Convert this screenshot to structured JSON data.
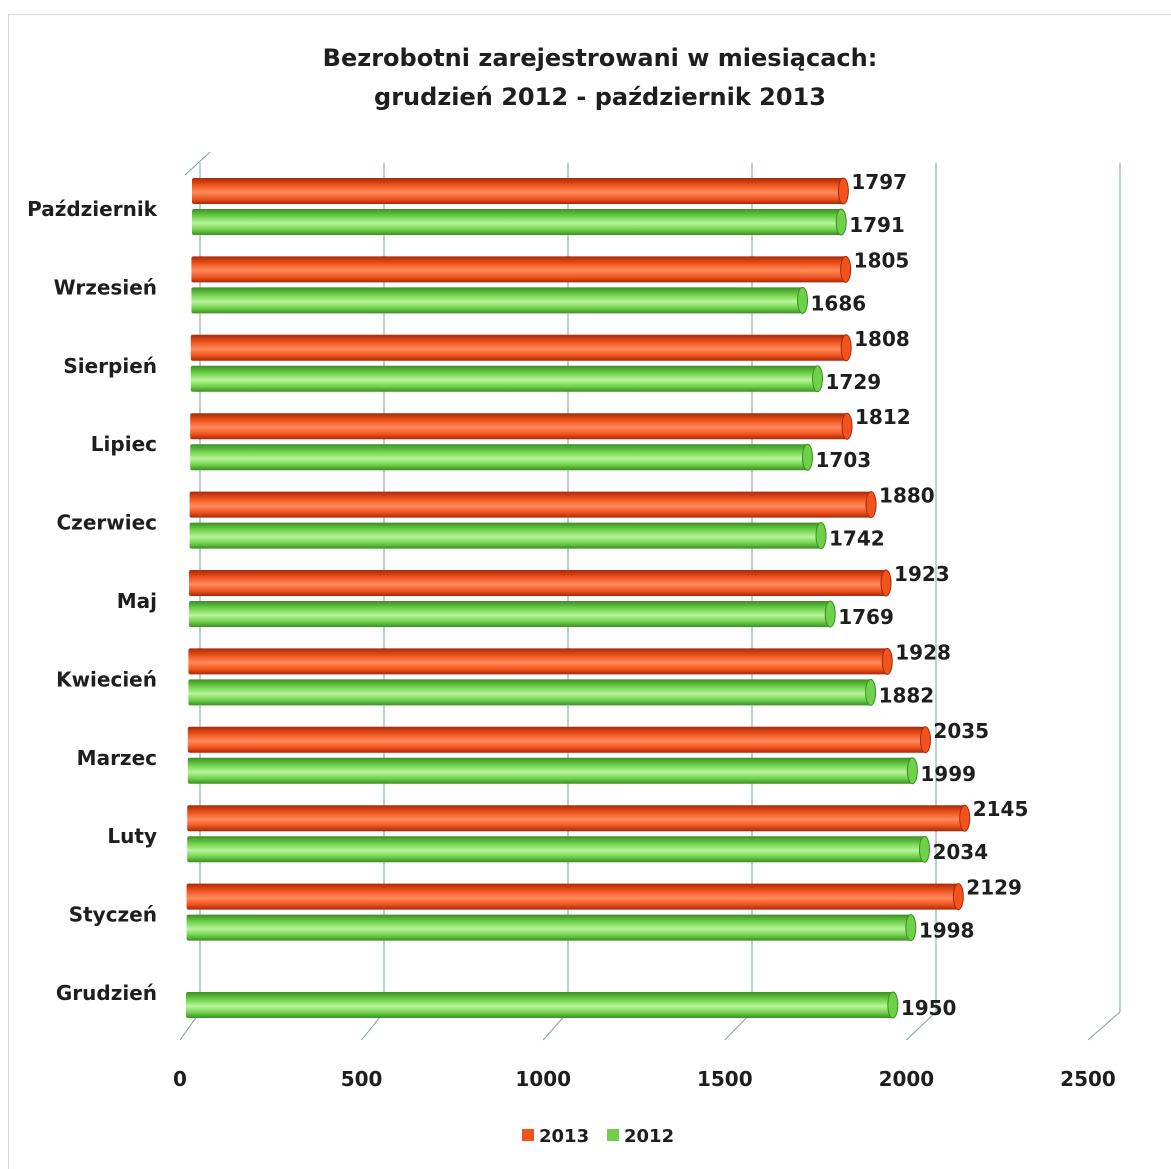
{
  "chart_data": {
    "type": "bar",
    "orientation": "horizontal",
    "style": "3d-cylinder",
    "title": [
      "Bezrobotni zarejestrowani w miesiącach:",
      "grudzień 2012 - październik 2013"
    ],
    "categories": [
      "Październik",
      "Wrzesień",
      "Sierpień",
      "Lipiec",
      "Czerwiec",
      "Maj",
      "Kwiecień",
      "Marzec",
      "Luty",
      "Styczeń",
      "Grudzień"
    ],
    "series": [
      {
        "name": "2013",
        "color": "#f0541c",
        "values": [
          1797,
          1805,
          1808,
          1812,
          1880,
          1923,
          1928,
          2035,
          2145,
          2129,
          null
        ]
      },
      {
        "name": "2012",
        "color": "#6fd04a",
        "values": [
          1791,
          1686,
          1729,
          1703,
          1742,
          1769,
          1882,
          1999,
          2034,
          1998,
          1950
        ]
      }
    ],
    "xlim": [
      0,
      2500
    ],
    "xticks": [
      "0",
      "500",
      "1000",
      "1500",
      "2000",
      "2500"
    ],
    "grid": true,
    "data_labels": true,
    "legend_position": "bottom"
  }
}
